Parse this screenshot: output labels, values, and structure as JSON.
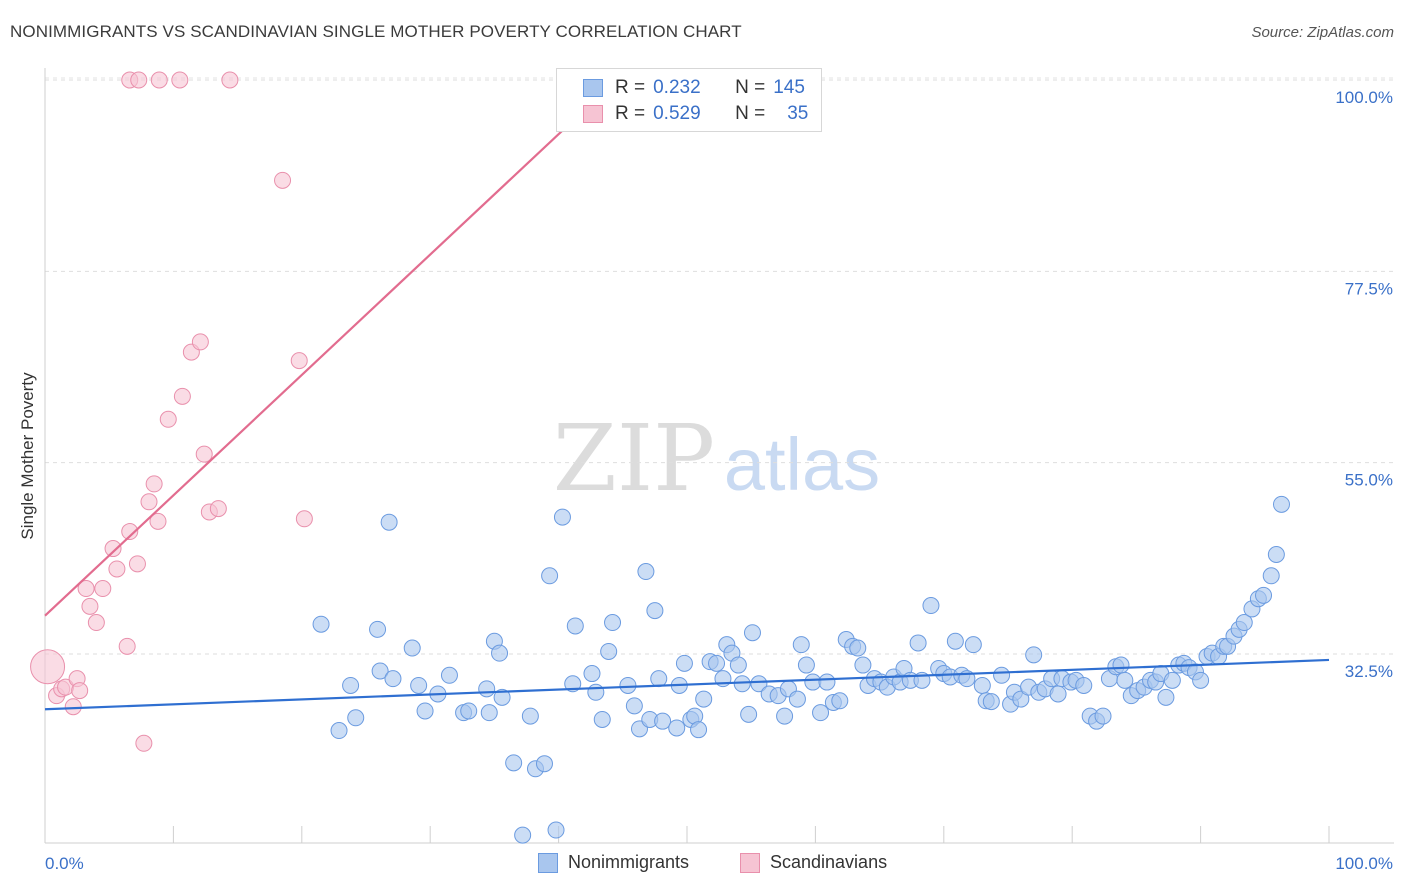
{
  "title": "NONIMMIGRANTS VS SCANDINAVIAN SINGLE MOTHER POVERTY CORRELATION CHART",
  "source": "Source: ZipAtlas.com",
  "watermark": {
    "zip": "ZIP",
    "atlas": "atlas"
  },
  "legend_box": {
    "rows": [
      {
        "r_label": "R =",
        "r_value": "0.232",
        "n_label": "N =",
        "n_value": "145"
      },
      {
        "r_label": "R =",
        "r_value": "0.529",
        "n_label": "N =",
        "n_value": "35"
      }
    ]
  },
  "bottom_legend": [
    "Nonimmigrants",
    "Scandinavians"
  ],
  "chart_data": {
    "type": "scatter",
    "title": "NONIMMIGRANTS VS SCANDINAVIAN SINGLE MOTHER POVERTY CORRELATION CHART",
    "xlabel": "",
    "ylabel": "Single Mother Poverty",
    "xlim": [
      0,
      100
    ],
    "ylim": [
      10,
      102
    ],
    "x_tick_labels": [
      {
        "value": 0,
        "label": "0.0%"
      },
      {
        "value": 100,
        "label": "100.0%"
      }
    ],
    "y_tick_labels": [
      {
        "value": 32.5,
        "label": "32.5%"
      },
      {
        "value": 55.0,
        "label": "55.0%"
      },
      {
        "value": 77.5,
        "label": "77.5%"
      },
      {
        "value": 100.0,
        "label": "100.0%"
      }
    ],
    "grid": "horizontal dashed",
    "legend_position": "top-center",
    "colors": {
      "nonimmigrants_fill": "#a9c6ee",
      "nonimmigrants_stroke": "#6b9be0",
      "nonimmigrants_line": "#2f6fd1",
      "scandinavians_fill": "#f6c4d3",
      "scandinavians_stroke": "#e990ac",
      "scandinavians_line": "#e26c8f",
      "value_text": "#3a70c8"
    },
    "series": [
      {
        "name": "Nonimmigrants",
        "r": 0.232,
        "n": 145,
        "trend": {
          "x": [
            0,
            100
          ],
          "y": [
            26.0,
            31.8
          ]
        },
        "points": [
          [
            21.5,
            36.0
          ],
          [
            22.9,
            23.5
          ],
          [
            23.8,
            28.8
          ],
          [
            24.2,
            25.0
          ],
          [
            25.9,
            35.4
          ],
          [
            26.1,
            30.5
          ],
          [
            26.8,
            48.0
          ],
          [
            27.1,
            29.6
          ],
          [
            28.6,
            33.2
          ],
          [
            29.1,
            28.8
          ],
          [
            29.6,
            25.8
          ],
          [
            30.6,
            27.8
          ],
          [
            31.5,
            30.0
          ],
          [
            32.6,
            25.6
          ],
          [
            33.0,
            25.8
          ],
          [
            34.4,
            28.4
          ],
          [
            34.6,
            25.6
          ],
          [
            35.0,
            34.0
          ],
          [
            35.4,
            32.6
          ],
          [
            36.5,
            19.7
          ],
          [
            37.2,
            11.2
          ],
          [
            37.8,
            25.2
          ],
          [
            38.2,
            19.0
          ],
          [
            38.9,
            19.6
          ],
          [
            39.3,
            41.7
          ],
          [
            39.8,
            11.8
          ],
          [
            40.3,
            48.6
          ],
          [
            41.1,
            29.0
          ],
          [
            41.3,
            35.8
          ],
          [
            42.6,
            30.2
          ],
          [
            42.9,
            28.0
          ],
          [
            43.4,
            24.8
          ],
          [
            44.2,
            36.2
          ],
          [
            43.9,
            32.8
          ],
          [
            45.4,
            28.8
          ],
          [
            45.9,
            26.4
          ],
          [
            46.3,
            23.7
          ],
          [
            46.8,
            42.2
          ],
          [
            47.1,
            24.8
          ],
          [
            47.5,
            37.6
          ],
          [
            47.8,
            29.6
          ],
          [
            48.1,
            24.6
          ],
          [
            49.2,
            23.8
          ],
          [
            49.4,
            28.8
          ],
          [
            49.8,
            31.4
          ],
          [
            50.3,
            24.8
          ],
          [
            50.6,
            25.2
          ],
          [
            50.9,
            23.6
          ],
          [
            51.3,
            27.2
          ],
          [
            51.8,
            31.6
          ],
          [
            52.3,
            31.4
          ],
          [
            52.8,
            29.6
          ],
          [
            53.1,
            33.6
          ],
          [
            53.5,
            32.6
          ],
          [
            54.0,
            31.2
          ],
          [
            54.3,
            29.0
          ],
          [
            54.8,
            25.4
          ],
          [
            55.1,
            35.0
          ],
          [
            55.6,
            29.0
          ],
          [
            56.4,
            27.8
          ],
          [
            57.1,
            27.6
          ],
          [
            57.6,
            25.2
          ],
          [
            57.9,
            28.4
          ],
          [
            58.6,
            27.2
          ],
          [
            58.9,
            33.6
          ],
          [
            59.3,
            31.2
          ],
          [
            59.8,
            29.2
          ],
          [
            60.4,
            25.6
          ],
          [
            60.9,
            29.2
          ],
          [
            61.4,
            26.8
          ],
          [
            61.9,
            27.0
          ],
          [
            62.4,
            34.2
          ],
          [
            62.9,
            33.4
          ],
          [
            63.3,
            33.2
          ],
          [
            63.7,
            31.2
          ],
          [
            64.1,
            28.8
          ],
          [
            64.6,
            29.6
          ],
          [
            65.1,
            29.2
          ],
          [
            65.6,
            28.6
          ],
          [
            66.1,
            29.8
          ],
          [
            66.6,
            29.2
          ],
          [
            66.9,
            30.8
          ],
          [
            67.4,
            29.4
          ],
          [
            68.0,
            33.8
          ],
          [
            68.3,
            29.4
          ],
          [
            69.0,
            38.2
          ],
          [
            69.6,
            30.8
          ],
          [
            70.0,
            30.2
          ],
          [
            70.5,
            29.8
          ],
          [
            70.9,
            34.0
          ],
          [
            71.4,
            30.0
          ],
          [
            71.8,
            29.6
          ],
          [
            72.3,
            33.6
          ],
          [
            73.0,
            28.8
          ],
          [
            73.3,
            27.0
          ],
          [
            73.7,
            26.9
          ],
          [
            74.5,
            30.0
          ],
          [
            75.2,
            26.6
          ],
          [
            75.5,
            28.0
          ],
          [
            76.0,
            27.2
          ],
          [
            76.6,
            28.6
          ],
          [
            77.0,
            32.4
          ],
          [
            77.4,
            28.0
          ],
          [
            77.9,
            28.4
          ],
          [
            78.4,
            29.6
          ],
          [
            78.9,
            27.8
          ],
          [
            79.2,
            29.6
          ],
          [
            79.9,
            29.2
          ],
          [
            80.3,
            29.4
          ],
          [
            80.9,
            28.8
          ],
          [
            81.4,
            25.2
          ],
          [
            81.9,
            24.6
          ],
          [
            82.4,
            25.2
          ],
          [
            82.9,
            29.6
          ],
          [
            83.4,
            31.0
          ],
          [
            83.8,
            31.2
          ],
          [
            84.1,
            29.4
          ],
          [
            84.6,
            27.6
          ],
          [
            85.1,
            28.2
          ],
          [
            85.6,
            28.6
          ],
          [
            86.1,
            29.4
          ],
          [
            86.5,
            29.2
          ],
          [
            86.9,
            30.2
          ],
          [
            87.3,
            27.4
          ],
          [
            87.8,
            29.4
          ],
          [
            88.3,
            31.2
          ],
          [
            88.7,
            31.4
          ],
          [
            89.1,
            30.9
          ],
          [
            89.6,
            30.4
          ],
          [
            90.0,
            29.4
          ],
          [
            90.5,
            32.2
          ],
          [
            90.9,
            32.6
          ],
          [
            91.4,
            32.2
          ],
          [
            91.8,
            33.4
          ],
          [
            92.1,
            33.4
          ],
          [
            92.6,
            34.6
          ],
          [
            93.0,
            35.4
          ],
          [
            93.4,
            36.2
          ],
          [
            94.0,
            37.8
          ],
          [
            94.5,
            39.0
          ],
          [
            94.9,
            39.4
          ],
          [
            95.5,
            41.7
          ],
          [
            95.9,
            44.2
          ],
          [
            96.3,
            50.1
          ],
          [
            35.6,
            27.4
          ]
        ]
      },
      {
        "name": "Scandinavians",
        "r": 0.529,
        "n": 35,
        "trend": {
          "x": [
            0,
            44.5
          ],
          "y": [
            37.0,
            100.0
          ]
        },
        "points": [
          [
            0.2,
            31.0
          ],
          [
            0.9,
            27.6
          ],
          [
            1.3,
            28.4
          ],
          [
            1.6,
            28.6
          ],
          [
            2.2,
            26.3
          ],
          [
            2.5,
            29.6
          ],
          [
            2.7,
            28.2
          ],
          [
            3.2,
            40.2
          ],
          [
            3.5,
            38.1
          ],
          [
            4.0,
            36.2
          ],
          [
            4.5,
            40.2
          ],
          [
            5.3,
            44.9
          ],
          [
            5.6,
            42.5
          ],
          [
            6.4,
            33.4
          ],
          [
            6.6,
            46.9
          ],
          [
            7.2,
            43.1
          ],
          [
            8.1,
            50.4
          ],
          [
            8.5,
            52.5
          ],
          [
            8.8,
            48.1
          ],
          [
            9.6,
            60.1
          ],
          [
            10.7,
            62.8
          ],
          [
            11.4,
            68.0
          ],
          [
            12.1,
            69.2
          ],
          [
            12.4,
            56.0
          ],
          [
            12.8,
            49.2
          ],
          [
            13.5,
            49.6
          ],
          [
            18.5,
            88.2
          ],
          [
            19.8,
            67.0
          ],
          [
            20.2,
            48.4
          ],
          [
            6.6,
            100.0
          ],
          [
            7.3,
            100.0
          ],
          [
            8.9,
            100.0
          ],
          [
            10.5,
            100.0
          ],
          [
            14.4,
            100.0
          ],
          [
            7.7,
            22.0
          ]
        ]
      }
    ]
  }
}
